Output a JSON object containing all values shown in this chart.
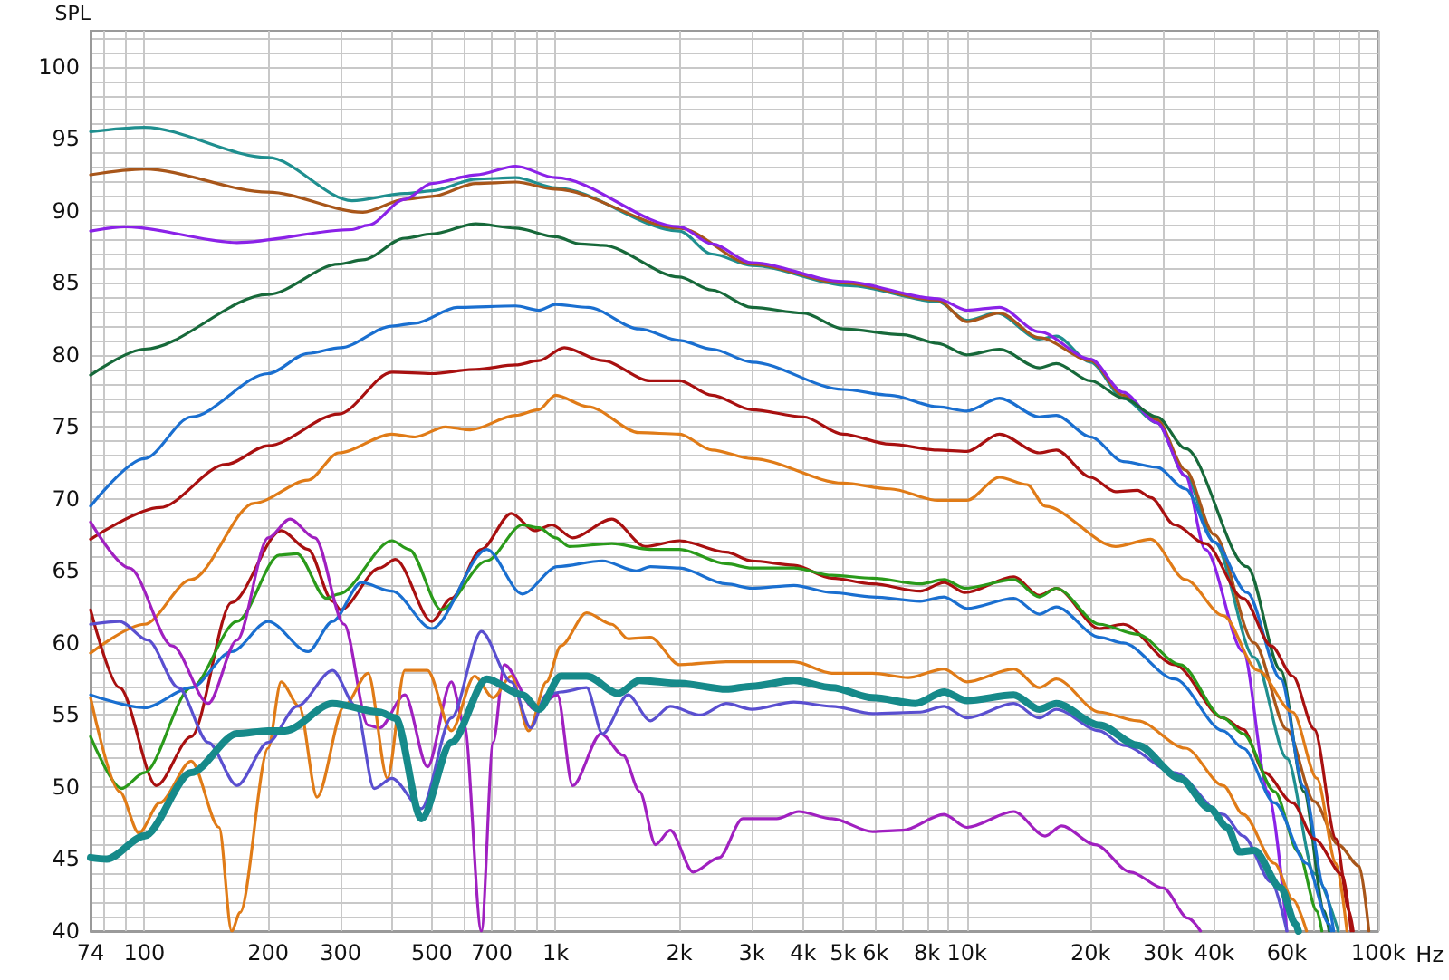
{
  "chart_data": {
    "type": "line",
    "ylabel": "SPL",
    "log": "x",
    "grid": true,
    "marker": "none",
    "line_style": "solid",
    "xlim": [
      74,
      100000
    ],
    "ylim": [
      40,
      102.5
    ],
    "xticks": [
      74,
      {
        "value": 80,
        "label": null
      },
      {
        "value": 90,
        "label": null
      },
      100,
      200,
      300,
      {
        "value": 400,
        "label": null
      },
      500,
      {
        "value": 600,
        "label": null
      },
      700,
      {
        "value": 800,
        "label": null
      },
      {
        "value": 900,
        "label": null
      },
      {
        "value": 1000,
        "label": "1k"
      },
      {
        "value": 2000,
        "label": "2k"
      },
      {
        "value": 3000,
        "label": "3k"
      },
      {
        "value": 4000,
        "label": "4k"
      },
      {
        "value": 5000,
        "label": "5k"
      },
      {
        "value": 6000,
        "label": "6k"
      },
      {
        "value": 7000,
        "label": null
      },
      {
        "value": 8000,
        "label": "8k"
      },
      {
        "value": 9000,
        "label": null
      },
      {
        "value": 10000,
        "label": "10k"
      },
      {
        "value": 20000,
        "label": "20k"
      },
      {
        "value": 30000,
        "label": "30k"
      },
      {
        "value": 40000,
        "label": "40k"
      },
      {
        "value": 50000,
        "label": null
      },
      {
        "value": 60000,
        "label": "60k"
      },
      {
        "value": 70000,
        "label": null
      },
      {
        "value": 80000,
        "label": null
      },
      {
        "value": 90000,
        "label": null
      },
      {
        "value": 100000,
        "label": "100k"
      }
    ],
    "xlabel": "Hz",
    "yticks": [
      40,
      {
        "value": 41,
        "label": null
      },
      {
        "value": 42,
        "label": null
      },
      {
        "value": 43,
        "label": null
      },
      {
        "value": 44,
        "label": null
      },
      45,
      {
        "value": 46,
        "label": null
      },
      {
        "value": 47,
        "label": null
      },
      {
        "value": 48,
        "label": null
      },
      {
        "value": 49,
        "label": null
      },
      50,
      {
        "value": 51,
        "label": null
      },
      {
        "value": 52,
        "label": null
      },
      {
        "value": 53,
        "label": null
      },
      {
        "value": 54,
        "label": null
      },
      55,
      {
        "value": 56,
        "label": null
      },
      {
        "value": 57,
        "label": null
      },
      {
        "value": 58,
        "label": null
      },
      {
        "value": 59,
        "label": null
      },
      60,
      {
        "value": 61,
        "label": null
      },
      {
        "value": 62,
        "label": null
      },
      {
        "value": 63,
        "label": null
      },
      {
        "value": 64,
        "label": null
      },
      65,
      {
        "value": 66,
        "label": null
      },
      {
        "value": 67,
        "label": null
      },
      {
        "value": 68,
        "label": null
      },
      {
        "value": 69,
        "label": null
      },
      70,
      {
        "value": 71,
        "label": null
      },
      {
        "value": 72,
        "label": null
      },
      {
        "value": 73,
        "label": null
      },
      {
        "value": 74,
        "label": null
      },
      75,
      {
        "value": 76,
        "label": null
      },
      {
        "value": 77,
        "label": null
      },
      {
        "value": 78,
        "label": null
      },
      {
        "value": 79,
        "label": null
      },
      80,
      {
        "value": 81,
        "label": null
      },
      {
        "value": 82,
        "label": null
      },
      {
        "value": 83,
        "label": null
      },
      {
        "value": 84,
        "label": null
      },
      85,
      {
        "value": 86,
        "label": null
      },
      {
        "value": 87,
        "label": null
      },
      {
        "value": 88,
        "label": null
      },
      {
        "value": 89,
        "label": null
      },
      90,
      {
        "value": 91,
        "label": null
      },
      {
        "value": 92,
        "label": null
      },
      {
        "value": 93,
        "label": null
      },
      {
        "value": 94,
        "label": null
      },
      95,
      {
        "value": 96,
        "label": null
      },
      {
        "value": 97,
        "label": null
      },
      {
        "value": 98,
        "label": null
      },
      {
        "value": 99,
        "label": null
      },
      100,
      {
        "value": 101,
        "label": null
      },
      {
        "value": 102,
        "label": null
      }
    ],
    "series": [
      {
        "color": "#1f8f8f",
        "x": [
          74,
          100,
          200,
          320,
          430,
          500,
          640,
          800,
          1000,
          2000,
          2400,
          3000,
          5200,
          8500,
          10000,
          11800,
          15000,
          16500,
          20000,
          24000,
          29000,
          34000,
          40000,
          50000,
          60000,
          70000,
          80000
        ],
        "values": [
          95.5,
          95.8,
          93.7,
          90.7,
          91.2,
          91.4,
          92.2,
          92.3,
          91.6,
          88.6,
          87.0,
          86.2,
          84.8,
          83.7,
          82.4,
          82.9,
          81.1,
          81.3,
          79.5,
          77.0,
          75.3,
          71.6,
          67,
          59,
          52,
          44,
          40
        ]
      },
      {
        "color": "#a8561a",
        "x": [
          74,
          100,
          200,
          340,
          430,
          500,
          640,
          800,
          1000,
          2000,
          3000,
          5000,
          8500,
          10000,
          12000,
          15000,
          20000,
          24000,
          29000,
          34000,
          40000,
          50000,
          60000,
          70000,
          80000,
          90000,
          95000
        ],
        "values": [
          92.5,
          92.9,
          91.3,
          89.9,
          90.8,
          91.0,
          91.9,
          92.0,
          91.5,
          88.8,
          86.3,
          85.0,
          83.8,
          82.3,
          82.9,
          81.2,
          79.6,
          77.2,
          75.5,
          72.0,
          67.5,
          60,
          54,
          49,
          46,
          44.5,
          40
        ]
      },
      {
        "color": "#8b22e8",
        "x": [
          74,
          90,
          168,
          320,
          350,
          430,
          500,
          640,
          800,
          1000,
          2000,
          2400,
          3000,
          5000,
          8500,
          10000,
          12000,
          15000,
          20000,
          24000,
          29000,
          34000,
          38000,
          47000,
          54000,
          60000
        ],
        "values": [
          88.6,
          88.9,
          87.8,
          88.7,
          89.0,
          90.8,
          91.9,
          92.5,
          93.1,
          92.3,
          88.9,
          87.7,
          86.4,
          85.1,
          83.9,
          83.1,
          83.3,
          81.6,
          79.7,
          77.4,
          75.3,
          71.6,
          66.5,
          59.4,
          49.7,
          40
        ]
      },
      {
        "color": "#17693a",
        "x": [
          74,
          100,
          200,
          297,
          340,
          430,
          500,
          640,
          800,
          1000,
          1150,
          1300,
          2000,
          2400,
          3000,
          4000,
          5000,
          7000,
          8500,
          10000,
          12000,
          15000,
          16500,
          20000,
          24000,
          29000,
          34000,
          48000,
          58000,
          66000,
          74000,
          76000
        ],
        "values": [
          78.6,
          80.4,
          84.2,
          86.3,
          86.6,
          88.1,
          88.4,
          89.1,
          88.8,
          88.2,
          87.7,
          87.6,
          85.4,
          84.5,
          83.3,
          82.9,
          81.8,
          81.4,
          80.8,
          80.0,
          80.4,
          79.1,
          79.4,
          78.2,
          77.0,
          75.7,
          73.5,
          65.3,
          58.1,
          49.7,
          41.4,
          40
        ]
      },
      {
        "color": "#1a6fd0",
        "x": [
          74,
          100,
          130,
          200,
          250,
          300,
          400,
          455,
          577,
          800,
          910,
          1000,
          1200,
          1600,
          2000,
          2400,
          3000,
          5000,
          6500,
          8500,
          10000,
          12000,
          15000,
          16500,
          20000,
          24000,
          29000,
          34000,
          40000,
          48000,
          58000,
          66000,
          74000,
          78000
        ],
        "values": [
          69.5,
          72.8,
          75.7,
          78.7,
          80.1,
          80.5,
          82.0,
          82.2,
          83.3,
          83.4,
          83.1,
          83.5,
          83.3,
          81.8,
          81.0,
          80.4,
          79.5,
          77.6,
          77.2,
          76.4,
          76.1,
          77.0,
          75.7,
          75.8,
          74.3,
          72.6,
          72.2,
          70.7,
          67,
          63.5,
          57.5,
          50,
          43,
          40
        ]
      },
      {
        "color": "#a81010",
        "x": [
          74,
          109,
          158,
          200,
          297,
          400,
          500,
          640,
          800,
          910,
          1050,
          1300,
          1700,
          2000,
          2400,
          3000,
          4000,
          5000,
          6500,
          8500,
          10000,
          12000,
          15000,
          16500,
          20000,
          23000,
          26000,
          28000,
          32000,
          38000,
          47000,
          55000,
          62000,
          70000,
          79000,
          85000,
          87000
        ],
        "values": [
          67.2,
          69.4,
          72.4,
          73.7,
          75.9,
          78.8,
          78.7,
          79.0,
          79.3,
          79.6,
          80.5,
          79.6,
          78.2,
          78.2,
          77.2,
          76.2,
          75.7,
          74.5,
          73.8,
          73.4,
          73.3,
          74.5,
          73.2,
          73.4,
          71.5,
          70.5,
          70.6,
          70.1,
          68.2,
          66.9,
          63.1,
          59.8,
          57.7,
          54.0,
          46.4,
          41.4,
          40
        ]
      },
      {
        "color": "#e07b17",
        "x": [
          74,
          100,
          130,
          185,
          250,
          297,
          400,
          455,
          540,
          620,
          800,
          910,
          1000,
          1200,
          1600,
          2000,
          2400,
          3000,
          5000,
          6500,
          8500,
          10000,
          12000,
          14000,
          15500,
          23000,
          28000,
          34000,
          42000,
          51000,
          62000,
          71000,
          79000,
          84000
        ],
        "values": [
          59.3,
          61.3,
          64.4,
          69.7,
          71.3,
          73.2,
          74.5,
          74.3,
          75.0,
          74.8,
          75.8,
          76.2,
          77.2,
          76.4,
          74.6,
          74.5,
          73.4,
          72.8,
          71.1,
          70.7,
          69.9,
          69.9,
          71.5,
          71.0,
          69.5,
          66.7,
          67.2,
          64.4,
          61.9,
          58.1,
          55.2,
          50.6,
          44.7,
          40
        ]
      },
      {
        "color": "#a81010",
        "x": [
          74,
          87,
          107,
          130,
          163,
          215,
          250,
          287,
          300,
          373,
          408,
          500,
          558,
          660,
          780,
          890,
          980,
          1100,
          1370,
          1650,
          2000,
          2600,
          3000,
          3800,
          4700,
          5900,
          7700,
          8800,
          9900,
          13000,
          15000,
          16500,
          21000,
          24000,
          32000,
          42000,
          47000,
          53000,
          62000,
          70000,
          82000,
          86000
        ],
        "values": [
          62.3,
          56.9,
          50.1,
          53.5,
          62.8,
          67.8,
          66.5,
          62.9,
          62.3,
          65.2,
          65.8,
          61.5,
          63.1,
          66.5,
          69.0,
          67.8,
          68.2,
          67.3,
          68.6,
          66.7,
          67.1,
          66.3,
          65.7,
          65.4,
          64.5,
          64.1,
          63.6,
          64.2,
          63.5,
          64.6,
          63.3,
          63.8,
          61.0,
          61.3,
          58.5,
          54.8,
          54.0,
          51.0,
          48.9,
          46.4,
          43.9,
          40
        ]
      },
      {
        "color": "#2a9a1a",
        "x": [
          74,
          88,
          100,
          130,
          168,
          213,
          235,
          277,
          297,
          400,
          440,
          527,
          680,
          830,
          910,
          1000,
          1080,
          1370,
          1700,
          2000,
          2600,
          3000,
          3800,
          4700,
          5900,
          7700,
          8800,
          9900,
          13000,
          15000,
          16500,
          21000,
          26000,
          33000,
          42000,
          47000,
          56000,
          64000,
          71000,
          73000
        ],
        "values": [
          53.5,
          49.9,
          51.0,
          56.9,
          61.5,
          66.1,
          66.2,
          63.1,
          63.4,
          67.1,
          66.5,
          62.3,
          65.7,
          68.2,
          68.0,
          67.3,
          66.7,
          66.9,
          66.5,
          66.5,
          65.5,
          65.2,
          65.2,
          64.7,
          64.5,
          64.1,
          64.4,
          63.8,
          64.4,
          63.2,
          63.8,
          61.3,
          60.6,
          58.5,
          54.8,
          53.7,
          49.7,
          45.5,
          41.4,
          40
        ]
      },
      {
        "color": "#1a6fd0",
        "x": [
          74,
          100,
          130,
          163,
          200,
          250,
          287,
          337,
          400,
          500,
          680,
          830,
          1010,
          1300,
          1570,
          1700,
          2000,
          2600,
          3000,
          3800,
          4700,
          5900,
          7700,
          8800,
          10000,
          13000,
          15000,
          16500,
          21000,
          24000,
          32000,
          42000,
          47000,
          56000,
          67000,
          76000,
          77000
        ],
        "values": [
          56.4,
          55.5,
          56.9,
          59.4,
          61.5,
          59.4,
          61.5,
          64.2,
          63.6,
          61.0,
          66.5,
          63.4,
          65.3,
          65.7,
          65.0,
          65.3,
          65.2,
          64.1,
          63.8,
          64.0,
          63.5,
          63.2,
          62.9,
          63.2,
          62.4,
          63.1,
          62.0,
          62.5,
          60.4,
          60.0,
          57.5,
          53.9,
          52.7,
          48.9,
          44.7,
          40.5,
          40
        ]
      },
      {
        "color": "#a020c0",
        "x": [
          74,
          92,
          117,
          143,
          168,
          200,
          226,
          260,
          306,
          350,
          373,
          430,
          488,
          558,
          600,
          660,
          705,
          750,
          890,
          1010,
          1100,
          1290,
          1460,
          1600,
          1750,
          1900,
          2160,
          2500,
          2850,
          3450,
          3900,
          4700,
          5900,
          7000,
          8800,
          10000,
          13000,
          15500,
          17000,
          20500,
          25000,
          30000,
          34500,
          37000
        ],
        "values": [
          68.4,
          65.2,
          59.8,
          55.8,
          60.2,
          67.3,
          68.6,
          67.3,
          61.3,
          54.3,
          54.1,
          56.4,
          51.4,
          57.3,
          54.3,
          40,
          53.1,
          58.5,
          55.4,
          56.4,
          50.1,
          53.7,
          52.2,
          49.7,
          46.0,
          47.0,
          44.1,
          45.1,
          47.8,
          47.8,
          48.3,
          47.8,
          46.9,
          47.0,
          48.1,
          47.2,
          48.3,
          46.6,
          47.3,
          46.0,
          44.1,
          43.0,
          40.9,
          40
        ]
      },
      {
        "color": "#e07b17",
        "x": [
          74,
          87,
          97,
          109,
          130,
          152,
          163,
          171,
          200,
          215,
          238,
          263,
          306,
          350,
          390,
          430,
          488,
          558,
          635,
          705,
          780,
          860,
          950,
          1030,
          1190,
          1370,
          1500,
          1700,
          2000,
          2600,
          3000,
          3800,
          4700,
          5900,
          7200,
          8800,
          10000,
          13000,
          15000,
          16500,
          21000,
          26000,
          34000,
          42000,
          47000,
          56000,
          62000,
          67000
        ],
        "values": [
          56.2,
          49.7,
          46.8,
          48.9,
          51.8,
          47.2,
          40,
          41.3,
          52.7,
          57.3,
          55.6,
          49.3,
          55.6,
          57.9,
          50.6,
          58.1,
          58.1,
          53.9,
          57.7,
          56.2,
          57.7,
          53.9,
          57.3,
          59.8,
          62.1,
          61.3,
          60.3,
          60.4,
          58.5,
          58.7,
          58.7,
          58.7,
          57.9,
          57.9,
          57.6,
          58.2,
          57.3,
          58.2,
          56.9,
          57.5,
          55.2,
          54.6,
          52.7,
          50.1,
          48.1,
          44.7,
          42.2,
          40
        ]
      },
      {
        "color": "#5a4fd0",
        "x": [
          74,
          87,
          102,
          121,
          143,
          168,
          200,
          235,
          287,
          327,
          362,
          400,
          472,
          558,
          660,
          780,
          870,
          950,
          1030,
          1190,
          1300,
          1500,
          1700,
          1900,
          2250,
          2600,
          3000,
          3800,
          4700,
          5900,
          7700,
          8800,
          10000,
          13000,
          15000,
          16500,
          21000,
          24000,
          32000,
          42000,
          47000,
          55000,
          60000
        ],
        "values": [
          61.3,
          61.5,
          60.2,
          56.9,
          53.1,
          50.1,
          53.1,
          55.6,
          58.1,
          55.6,
          49.9,
          50.6,
          48.5,
          54.8,
          60.8,
          57.3,
          54.1,
          56.4,
          56.6,
          56.9,
          53.7,
          56.4,
          54.6,
          55.6,
          55.0,
          55.8,
          55.4,
          55.9,
          55.6,
          55.1,
          55.2,
          55.6,
          54.8,
          55.8,
          54.8,
          55.4,
          53.9,
          52.9,
          51.0,
          48.1,
          46.6,
          43.4,
          40
        ]
      },
      {
        "color": "#168a8a",
        "x": [
          74,
          81,
          100,
          130,
          168,
          200,
          220,
          287,
          373,
          408,
          472,
          558,
          680,
          830,
          910,
          1030,
          1190,
          1420,
          1600,
          2000,
          2600,
          3000,
          3800,
          4700,
          5900,
          7500,
          8800,
          10000,
          13000,
          15000,
          16500,
          21000,
          26000,
          33000,
          39000,
          43000,
          46000,
          50000,
          58000,
          63000,
          64000
        ],
        "values": [
          45.1,
          45.0,
          46.6,
          51.0,
          53.7,
          53.9,
          53.9,
          55.8,
          55.2,
          54.8,
          47.8,
          53.1,
          57.5,
          56.4,
          55.4,
          57.7,
          57.7,
          56.5,
          57.4,
          57.2,
          56.8,
          57.0,
          57.4,
          56.9,
          56.2,
          55.8,
          56.6,
          56.0,
          56.4,
          55.4,
          55.8,
          54.3,
          52.9,
          50.6,
          48.5,
          47.2,
          45.5,
          45.6,
          43.0,
          40.5,
          40
        ]
      }
    ]
  }
}
